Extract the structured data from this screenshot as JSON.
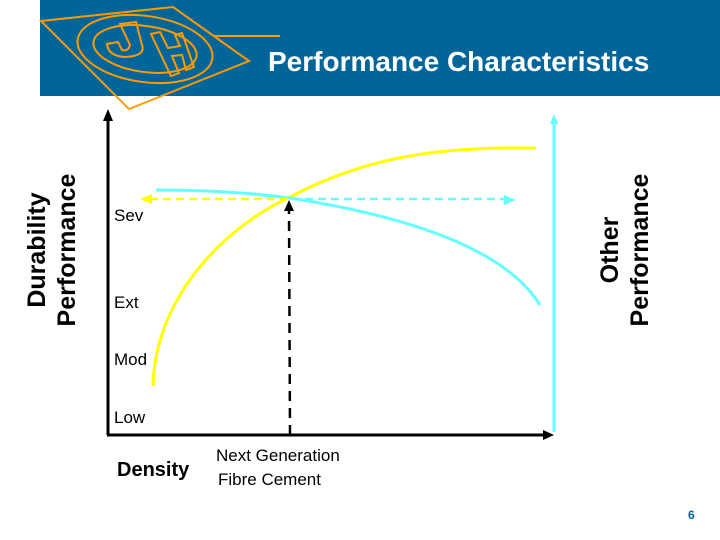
{
  "slide": {
    "title": "Performance Characteristics",
    "page_number": "6",
    "colors": {
      "header": "#006699",
      "logo": "#FF9900",
      "durability_curve": "#FFFF00",
      "other_curve": "#66FFFF"
    }
  },
  "chart": {
    "left_axis_title_line1": "Durability",
    "left_axis_title_line2": "Performance",
    "right_axis_title_line1": "Other",
    "right_axis_title_line2": "Performance",
    "y_levels": [
      "Sev",
      "Ext",
      "Mod",
      "Low"
    ],
    "x_axis_title": "Density",
    "marker_label_line1": "Next Generation",
    "marker_label_line2": "Fibre Cement"
  }
}
